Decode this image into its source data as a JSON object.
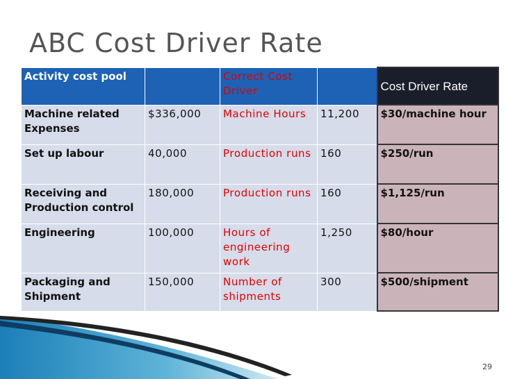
{
  "title": "ABC Cost Driver Rate",
  "table": {
    "header": {
      "pool": "Activity cost pool",
      "driver": "Correct Cost Driver",
      "rate": "Cost Driver Rate"
    },
    "rows": [
      [
        "Machine related Expenses",
        "$336,000",
        "Machine Hours",
        "11,200",
        "$30/machine hour"
      ],
      [
        "Set up labour",
        "40,000",
        "Production runs",
        "160",
        "$250/run"
      ],
      [
        "Receiving and Production control",
        "180,000",
        "Production runs",
        "160",
        "$1,125/run"
      ],
      [
        "Engineering",
        "100,000",
        "Hours of engineering work",
        "1,250",
        "$80/hour"
      ],
      [
        "Packaging and Shipment",
        "150,000",
        "Number of shipments",
        "300",
        "$500/shipment"
      ]
    ]
  },
  "page_number": "29"
}
